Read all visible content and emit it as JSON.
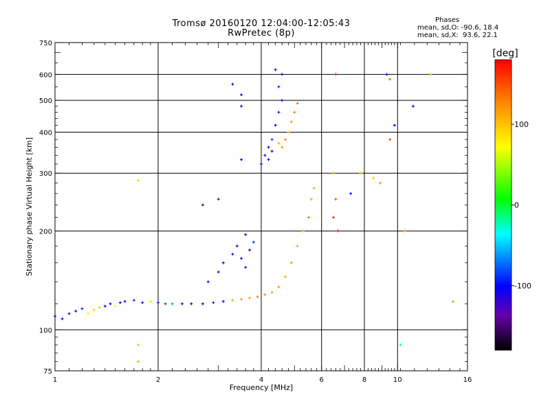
{
  "chart_data": {
    "type": "scatter",
    "title": "Tromsø 20160120 12:04:00-12:05:43",
    "subtitle": "RwPretec (8p)",
    "xlabel": "Frequency [MHz]",
    "ylabel": "Stationary phase Virtual Height [km]",
    "x_scale": "log",
    "y_scale": "log",
    "xlim": [
      1,
      16
    ],
    "ylim": [
      75,
      750
    ],
    "x_ticks": [
      1,
      2,
      4,
      6,
      8,
      10,
      16
    ],
    "y_ticks": [
      75,
      100,
      200,
      300,
      400,
      500,
      600,
      750
    ],
    "grid": true,
    "colorbar": {
      "label": "[deg]",
      "range": [
        -180,
        180
      ],
      "ticks": [
        100,
        0,
        -100
      ],
      "colors": [
        "#000000",
        "#6600aa",
        "#0000ff",
        "#00ffff",
        "#00ff00",
        "#ffff00",
        "#ff8800",
        "#ff0000"
      ]
    },
    "stats": {
      "heading": "Phases",
      "o_mode": "mean, sd,O: -90.6, 18.4",
      "x_mode": "mean, sd,X:  93.6, 22.1"
    },
    "series": [
      {
        "points": [
          [
            1.0,
            110,
            -100
          ],
          [
            1.05,
            108,
            -110
          ],
          [
            1.1,
            112,
            -95
          ],
          [
            1.15,
            114,
            -100
          ],
          [
            1.2,
            116,
            -90
          ],
          [
            1.25,
            112,
            80
          ],
          [
            1.3,
            115,
            90
          ],
          [
            1.35,
            117,
            100
          ],
          [
            1.4,
            118,
            -100
          ],
          [
            1.45,
            120,
            -110
          ],
          [
            1.5,
            118,
            70
          ],
          [
            1.55,
            121,
            -100
          ],
          [
            1.6,
            122,
            -100
          ],
          [
            1.7,
            123,
            -90
          ],
          [
            1.8,
            121,
            -100
          ],
          [
            1.9,
            122,
            60
          ],
          [
            2.0,
            121,
            -100
          ],
          [
            2.1,
            120,
            -80
          ],
          [
            2.2,
            120,
            -60
          ],
          [
            2.35,
            120,
            -100
          ],
          [
            2.5,
            120,
            -100
          ],
          [
            2.7,
            120,
            -100
          ],
          [
            2.9,
            121,
            -95
          ],
          [
            3.1,
            122,
            -100
          ],
          [
            3.3,
            123,
            110
          ],
          [
            3.5,
            124,
            120
          ],
          [
            3.7,
            125,
            115
          ],
          [
            3.9,
            126,
            130
          ],
          [
            4.1,
            128,
            125
          ],
          [
            4.3,
            130,
            110
          ],
          [
            4.5,
            135,
            120
          ],
          [
            4.7,
            145,
            110
          ],
          [
            4.9,
            160,
            120
          ],
          [
            5.1,
            180,
            110
          ],
          [
            5.3,
            200,
            120
          ],
          [
            5.5,
            220,
            130
          ],
          [
            5.6,
            250,
            115
          ],
          [
            5.7,
            270,
            110
          ],
          [
            3.1,
            160,
            -100
          ],
          [
            3.3,
            170,
            -110
          ],
          [
            3.5,
            165,
            -100
          ],
          [
            3.6,
            155,
            -120
          ],
          [
            3.7,
            175,
            -100
          ],
          [
            3.8,
            185,
            -90
          ],
          [
            3.0,
            150,
            -110
          ],
          [
            2.8,
            140,
            -100
          ],
          [
            3.4,
            180,
            -110
          ],
          [
            3.6,
            195,
            -100
          ],
          [
            4.0,
            320,
            -100
          ],
          [
            4.1,
            340,
            -110
          ],
          [
            4.2,
            360,
            -100
          ],
          [
            4.3,
            380,
            -90
          ],
          [
            4.4,
            420,
            -100
          ],
          [
            4.5,
            460,
            -110
          ],
          [
            4.6,
            500,
            -100
          ],
          [
            4.5,
            550,
            -95
          ],
          [
            4.6,
            600,
            -105
          ],
          [
            4.4,
            620,
            -100
          ],
          [
            4.2,
            330,
            -100
          ],
          [
            4.3,
            350,
            -110
          ],
          [
            4.5,
            370,
            110
          ],
          [
            4.6,
            360,
            120
          ],
          [
            4.7,
            380,
            130
          ],
          [
            4.8,
            400,
            110
          ],
          [
            4.9,
            430,
            120
          ],
          [
            5.0,
            460,
            130
          ],
          [
            5.1,
            490,
            140
          ],
          [
            3.5,
            480,
            -100
          ],
          [
            3.5,
            520,
            -110
          ],
          [
            3.5,
            330,
            -100
          ],
          [
            3.3,
            560,
            -110
          ],
          [
            6.5,
            300,
            120
          ],
          [
            6.6,
            250,
            150
          ],
          [
            6.5,
            220,
            170
          ],
          [
            6.7,
            200,
            180
          ],
          [
            6.6,
            600,
            170
          ],
          [
            8.5,
            290,
            100
          ],
          [
            8.9,
            280,
            120
          ],
          [
            7.8,
            300,
            110
          ],
          [
            9.3,
            600,
            -100
          ],
          [
            9.5,
            380,
            150
          ],
          [
            9.5,
            580,
            140
          ],
          [
            9.8,
            420,
            -100
          ],
          [
            10.5,
            200,
            130
          ],
          [
            12.5,
            600,
            110
          ],
          [
            11.1,
            480,
            -100
          ],
          [
            14.5,
            122,
            120
          ],
          [
            10.2,
            90,
            -30
          ],
          [
            1.75,
            90,
            40
          ],
          [
            1.75,
            285,
            90
          ],
          [
            1.75,
            80,
            110
          ],
          [
            3.0,
            250,
            -120
          ],
          [
            2.7,
            240,
            -150
          ],
          [
            7.3,
            260,
            -100
          ]
        ]
      }
    ]
  }
}
